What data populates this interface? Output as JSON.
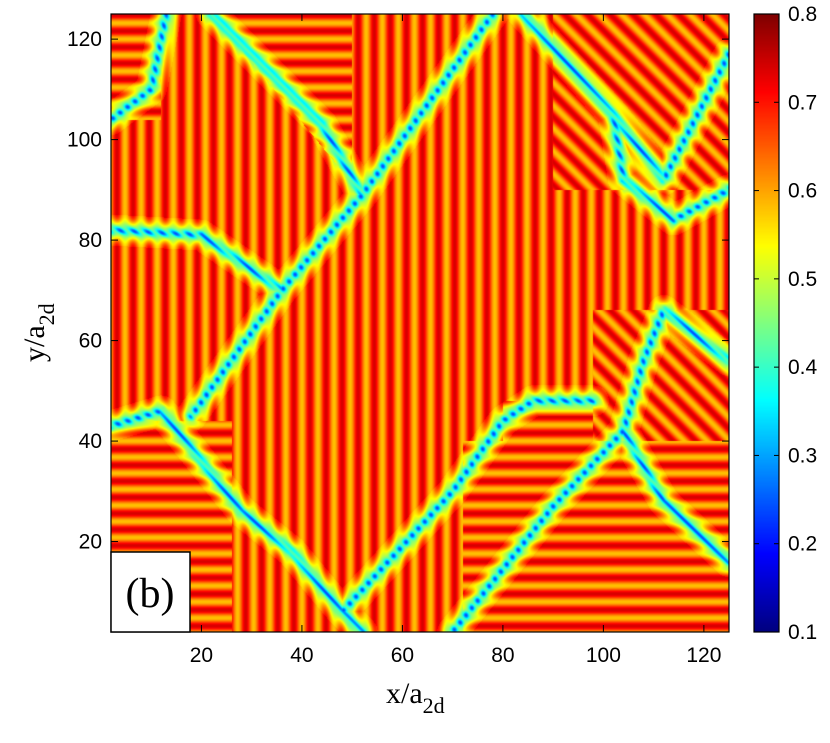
{
  "chart_data": {
    "type": "heatmap",
    "title": "",
    "panel_label": "(b)",
    "xlabel": {
      "main": "x/a",
      "sub": "2d"
    },
    "ylabel": {
      "main": "y/a",
      "sub": "2d"
    },
    "xlim": [
      2,
      125
    ],
    "ylim": [
      2,
      125
    ],
    "xticks": [
      20,
      40,
      60,
      80,
      100,
      120
    ],
    "yticks": [
      20,
      40,
      60,
      80,
      100,
      120
    ],
    "colorbar": {
      "range": [
        0.1,
        0.8
      ],
      "ticks": [
        0.1,
        0.2,
        0.3,
        0.4,
        0.5,
        0.6,
        0.7,
        0.8
      ],
      "tick_labels": [
        "0.1",
        "0.2",
        "0.3",
        "0.4",
        "0.5",
        "0.6",
        "0.7",
        "0.8"
      ],
      "colormap": "jet"
    },
    "stripe_period": 3.2,
    "domain_wall_value": 0.42,
    "stripe_min": 0.58,
    "stripe_max": 0.74,
    "domains": [
      {
        "orientation": "vertical",
        "region": "central diagonal band and lower-left corner"
      },
      {
        "orientation": "horizontal",
        "region": "upper-left, lower-left and lower-right regions"
      },
      {
        "orientation": "diagonal",
        "region": "upper-right and middle-right regions"
      }
    ],
    "domain_walls": [
      {
        "name": "wall-upper-left",
        "points": [
          [
            2,
            104
          ],
          [
            10,
            110
          ],
          [
            13,
            125
          ]
        ]
      },
      {
        "name": "wall-top",
        "points": [
          [
            22,
            125
          ],
          [
            44,
            103
          ],
          [
            52,
            89
          ]
        ]
      },
      {
        "name": "wall-left-middle",
        "points": [
          [
            2,
            82
          ],
          [
            20,
            81
          ],
          [
            36,
            70
          ]
        ]
      },
      {
        "name": "wall-central",
        "points": [
          [
            18,
            45
          ],
          [
            36,
            70
          ],
          [
            52,
            89
          ],
          [
            78,
            125
          ]
        ]
      },
      {
        "name": "wall-lower-left",
        "points": [
          [
            2,
            43
          ],
          [
            12,
            46
          ],
          [
            28,
            26
          ],
          [
            38,
            18
          ],
          [
            48,
            6
          ],
          [
            52,
            2
          ]
        ]
      },
      {
        "name": "wall-lower-middle",
        "points": [
          [
            48,
            6
          ],
          [
            70,
            30
          ],
          [
            80,
            44
          ],
          [
            86,
            48
          ],
          [
            98,
            48
          ]
        ]
      },
      {
        "name": "wall-lower-right",
        "points": [
          [
            70,
            2
          ],
          [
            90,
            27
          ],
          [
            104,
            42
          ],
          [
            108,
            56
          ],
          [
            112,
            66
          ],
          [
            125,
            56
          ]
        ]
      },
      {
        "name": "wall-right-lower",
        "points": [
          [
            104,
            42
          ],
          [
            112,
            28
          ],
          [
            125,
            16
          ]
        ]
      },
      {
        "name": "wall-upper-right",
        "points": [
          [
            84,
            125
          ],
          [
            102,
            105
          ],
          [
            112,
            92
          ],
          [
            125,
            117
          ]
        ]
      },
      {
        "name": "wall-right-middle",
        "points": [
          [
            102,
            105
          ],
          [
            104,
            92
          ],
          [
            114,
            84
          ],
          [
            125,
            90
          ]
        ]
      }
    ]
  }
}
